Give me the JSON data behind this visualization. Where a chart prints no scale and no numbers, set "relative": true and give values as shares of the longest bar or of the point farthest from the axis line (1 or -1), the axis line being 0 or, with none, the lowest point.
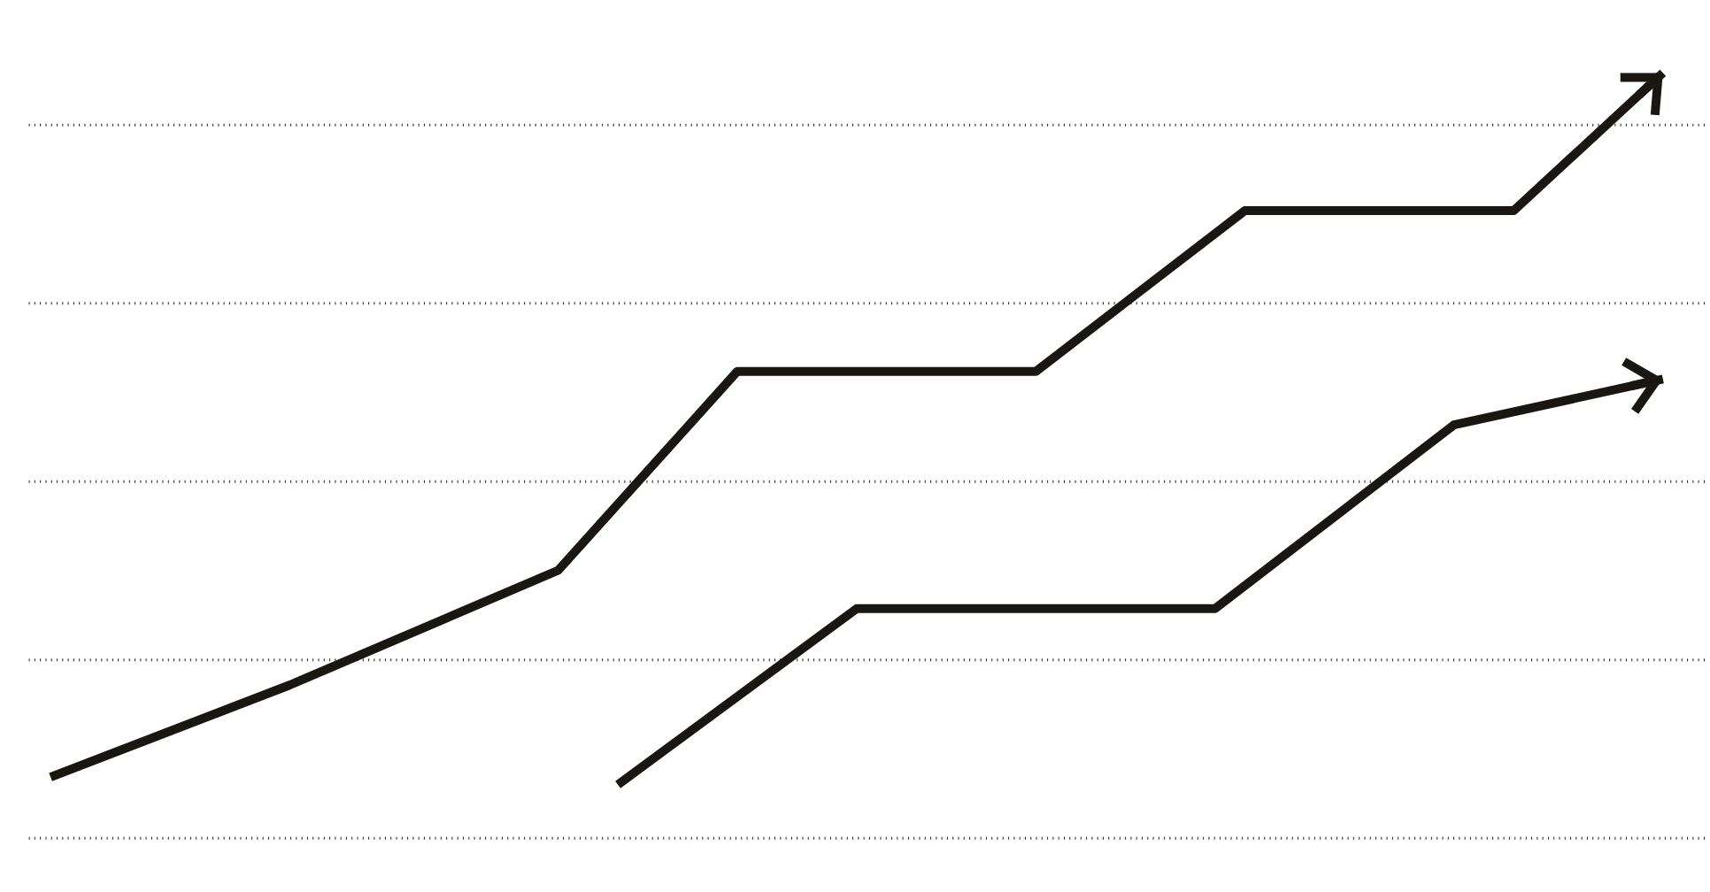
{
  "chart_data": {
    "type": "line",
    "relative": true,
    "grid": "y",
    "marker": "none",
    "line_style": "solid",
    "categories": [
      null,
      null,
      null,
      null,
      null,
      null,
      null,
      null,
      null,
      null,
      null,
      null,
      null,
      null,
      null,
      null,
      null,
      null,
      null,
      null,
      null,
      null,
      null,
      null,
      null,
      null,
      null,
      null,
      null,
      null,
      null,
      null,
      null,
      null,
      null,
      null,
      null,
      null,
      null,
      null,
      null,
      null,
      null,
      null,
      null,
      null,
      null,
      null,
      null,
      null,
      null,
      null,
      null,
      null,
      null
    ],
    "series": [
      {
        "color": "#1a1612",
        "values": [
          0.08,
          null,
          null,
          null,
          null,
          null,
          null,
          null,
          0.2,
          null,
          null,
          null,
          null,
          null,
          null,
          null,
          null,
          0.35,
          null,
          null,
          null,
          null,
          null,
          0.61,
          null,
          null,
          null,
          null,
          null,
          null,
          null,
          null,
          null,
          0.61,
          null,
          null,
          null,
          null,
          null,
          null,
          0.82,
          null,
          null,
          null,
          null,
          null,
          null,
          null,
          null,
          0.82,
          null,
          null,
          null,
          null,
          1
        ]
      },
      {
        "color": "#1a1612",
        "values": [
          null,
          null,
          null,
          null,
          null,
          null,
          null,
          null,
          null,
          null,
          null,
          null,
          null,
          null,
          null,
          null,
          null,
          null,
          null,
          0.07,
          null,
          null,
          null,
          null,
          null,
          null,
          null,
          0.3,
          null,
          null,
          null,
          null,
          null,
          null,
          null,
          null,
          null,
          null,
          null,
          0.3,
          null,
          null,
          null,
          null,
          null,
          null,
          null,
          0.54,
          null,
          null,
          null,
          null,
          null,
          null,
          0.6
        ]
      }
    ]
  }
}
